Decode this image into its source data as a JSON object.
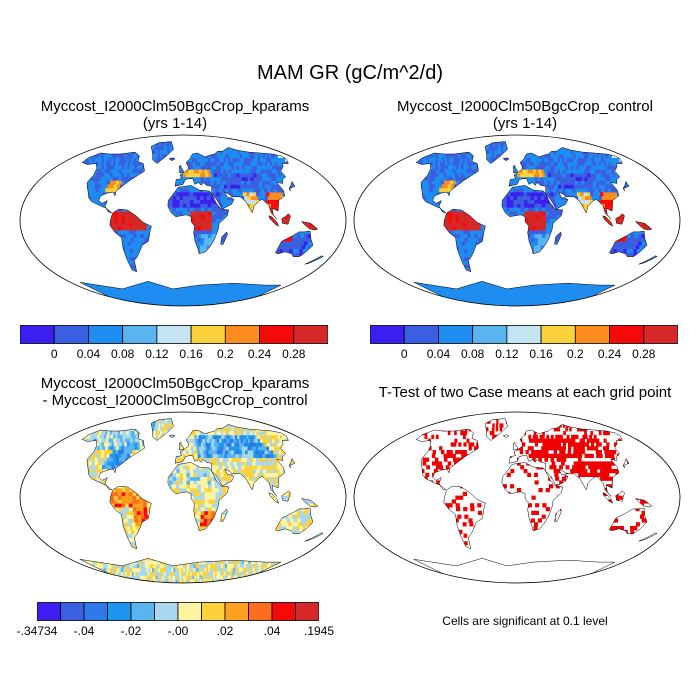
{
  "main_title": "MAM GR (gC/m^2/d)",
  "panels": [
    {
      "id": "kparams",
      "title_lines": [
        "Myccost_I2000Clm50BgcCrop_kparams",
        "(yrs 1-14)"
      ],
      "palette": "abs"
    },
    {
      "id": "control",
      "title_lines": [
        "Myccost_I2000Clm50BgcCrop_control",
        "(yrs 1-14)"
      ],
      "palette": "abs"
    },
    {
      "id": "diff",
      "title_lines": [
        "Myccost_I2000Clm50BgcCrop_kparams",
        "- Myccost_I2000Clm50BgcCrop_control"
      ],
      "palette": "diff"
    },
    {
      "id": "ttest",
      "title_lines": [
        "T-Test of two Case means at each grid point"
      ],
      "palette": "sig"
    }
  ],
  "colorbars": {
    "abs": {
      "colors": [
        "#3d1ef0",
        "#3a5fe0",
        "#1e8cf0",
        "#5ab4f0",
        "#c4e4f4",
        "#fcd23c",
        "#fc8c1e",
        "#f50a0a",
        "#d62828"
      ],
      "labels": [
        "0",
        "0.04",
        "0.08",
        "0.12",
        "0.16",
        "0.2",
        "0.24",
        "0.28"
      ]
    },
    "diff": {
      "colors": [
        "#3d1ef0",
        "#3a5fe0",
        "#2e78e8",
        "#1e96f0",
        "#5ab4f0",
        "#a8d8f0",
        "#fff5a0",
        "#fcd23c",
        "#fca01e",
        "#fc6e1e",
        "#f50a0a",
        "#d62828"
      ],
      "labels": [
        "-.34734",
        "-.04",
        "-.02",
        "-.00",
        ".02",
        ".04",
        ".1945"
      ]
    }
  },
  "note": "Cells are significant at 0.1 level",
  "colors": {
    "ocean": "#ffffff",
    "coast": "#000000",
    "ttest_sig": "#f00000"
  }
}
